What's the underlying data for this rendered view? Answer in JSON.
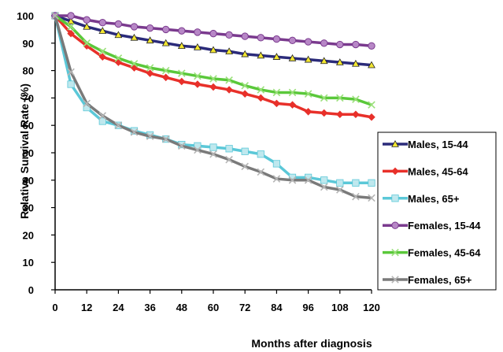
{
  "chart_data": {
    "type": "line",
    "xlabel": "Months after diagnosis",
    "ylabel": "Relative Survival Rate (%)",
    "xlim": [
      0,
      120
    ],
    "ylim": [
      0,
      100
    ],
    "x_ticks": [
      0,
      12,
      24,
      36,
      48,
      60,
      72,
      84,
      96,
      108,
      120
    ],
    "y_ticks": [
      0,
      10,
      20,
      30,
      40,
      50,
      60,
      70,
      80,
      90,
      100
    ],
    "grid": false,
    "legend_position": "right",
    "x": [
      0,
      6,
      12,
      18,
      24,
      30,
      36,
      42,
      48,
      54,
      60,
      66,
      72,
      78,
      84,
      90,
      96,
      102,
      108,
      114,
      120
    ],
    "series": [
      {
        "name": "Males, 15-44",
        "color": "#2b2b7a",
        "marker_fill": "#f2e632",
        "marker": "triangle",
        "values": [
          100,
          98,
          96,
          94.5,
          93,
          92,
          91,
          90,
          89,
          88.5,
          87.5,
          87,
          86,
          85.5,
          85,
          84.5,
          84,
          83.5,
          83,
          82.5,
          82
        ]
      },
      {
        "name": "Males, 45-64",
        "color": "#e8302a",
        "marker_fill": "#e8302a",
        "marker": "diamond",
        "values": [
          100,
          93.5,
          89,
          85,
          83,
          81,
          79,
          77.5,
          76,
          75,
          74,
          73,
          71.5,
          70,
          68,
          67.5,
          65,
          64.5,
          64,
          64,
          63
        ]
      },
      {
        "name": "Males, 65+",
        "color": "#5bc8d8",
        "marker_fill": "#bfe8ee",
        "marker": "square",
        "values": [
          100,
          75,
          66.5,
          61.5,
          60,
          58,
          56.5,
          55,
          53,
          52.5,
          52,
          51.5,
          50.5,
          49.5,
          46,
          41,
          41,
          40,
          39,
          39,
          39
        ]
      },
      {
        "name": "Females, 15-44",
        "color": "#7a3a8e",
        "marker_fill": "#b787c6",
        "marker": "circle",
        "values": [
          100,
          100,
          98.5,
          97.5,
          97,
          96,
          95.5,
          95,
          94.5,
          94,
          93.5,
          93,
          92.5,
          92,
          91.5,
          91,
          90.5,
          90,
          89.5,
          89.5,
          89
        ]
      },
      {
        "name": "Females, 45-64",
        "color": "#5ac83a",
        "marker_fill": "#9ae07a",
        "marker": "x",
        "values": [
          100,
          96,
          90,
          87,
          84.5,
          82.5,
          81,
          80,
          79,
          78,
          77,
          76.5,
          74.5,
          73,
          72,
          72,
          71.5,
          70,
          70,
          69.5,
          67.5
        ]
      },
      {
        "name": "Females, 65+",
        "color": "#7a7a7a",
        "marker_fill": "#b5b5b5",
        "marker": "x",
        "values": [
          100,
          79.5,
          68,
          63.5,
          60,
          57.5,
          56,
          55,
          52.5,
          51,
          49.5,
          47.5,
          45,
          43,
          40.5,
          40,
          40,
          37.5,
          36.5,
          34,
          33.5
        ]
      }
    ]
  }
}
